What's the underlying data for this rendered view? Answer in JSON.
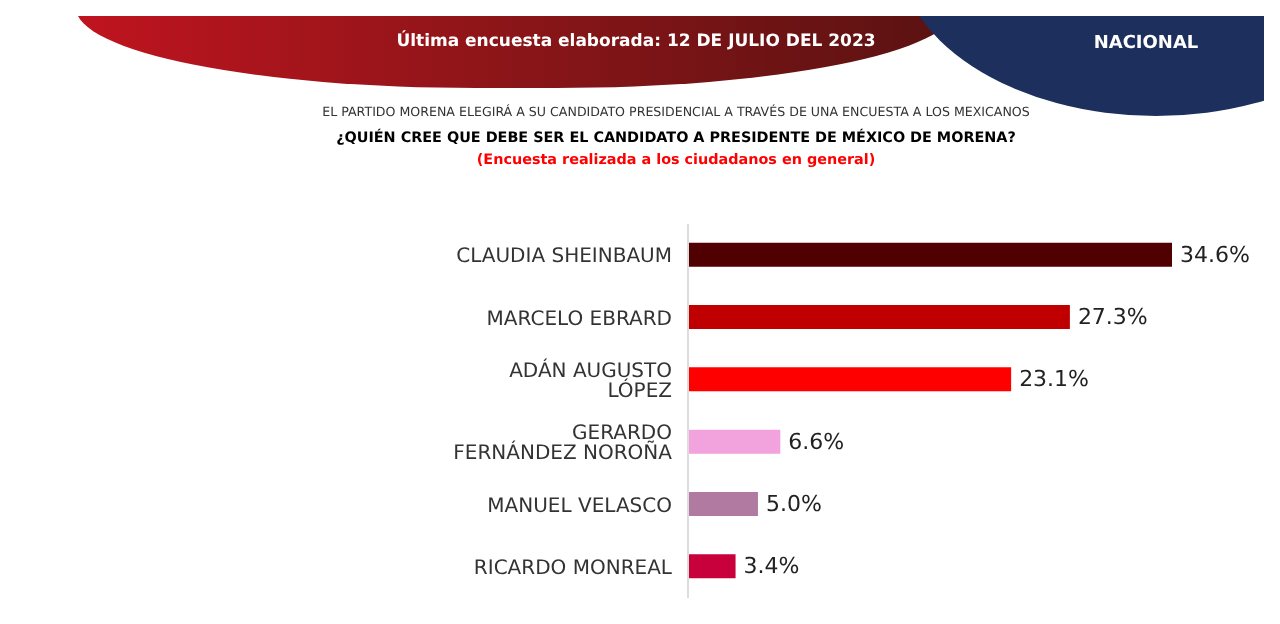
{
  "chart_data": {
    "type": "bar",
    "orientation": "horizontal",
    "title": "EL PARTIDO MORENA ELEGIRÁ A SU CANDIDATO PRESIDENCIAL A TRAVÉS DE UNA ENCUESTA A LOS MEXICANOS",
    "subtitle": "¿QUIÉN CREE QUE DEBE SER EL CANDIDATO A PRESIDENTE DE MÉXICO DE MORENA?",
    "annotations": [
      "Última encuesta elaborada:  12 DE JULIO DEL 2023",
      "NACIONAL",
      "(Encuesta realizada a los ciudadanos en general)"
    ],
    "categories": [
      "CLAUDIA SHEINBAUM",
      "MARCELO EBRARD",
      "ADÁN AUGUSTO LÓPEZ",
      "GERARDO FERNÁNDEZ NOROÑA",
      "MANUEL VELASCO",
      "RICARDO MONREAL"
    ],
    "values": [
      34.6,
      27.3,
      23.1,
      6.6,
      5.0,
      3.4
    ],
    "value_labels": [
      "34.6%",
      "27.3%",
      "23.1%",
      "6.6%",
      "5.0%",
      "3.4%"
    ],
    "colors": [
      "#500000",
      "#c00000",
      "#ff0000",
      "#f2a2dc",
      "#b07aa1",
      "#c8003c"
    ]
  }
}
